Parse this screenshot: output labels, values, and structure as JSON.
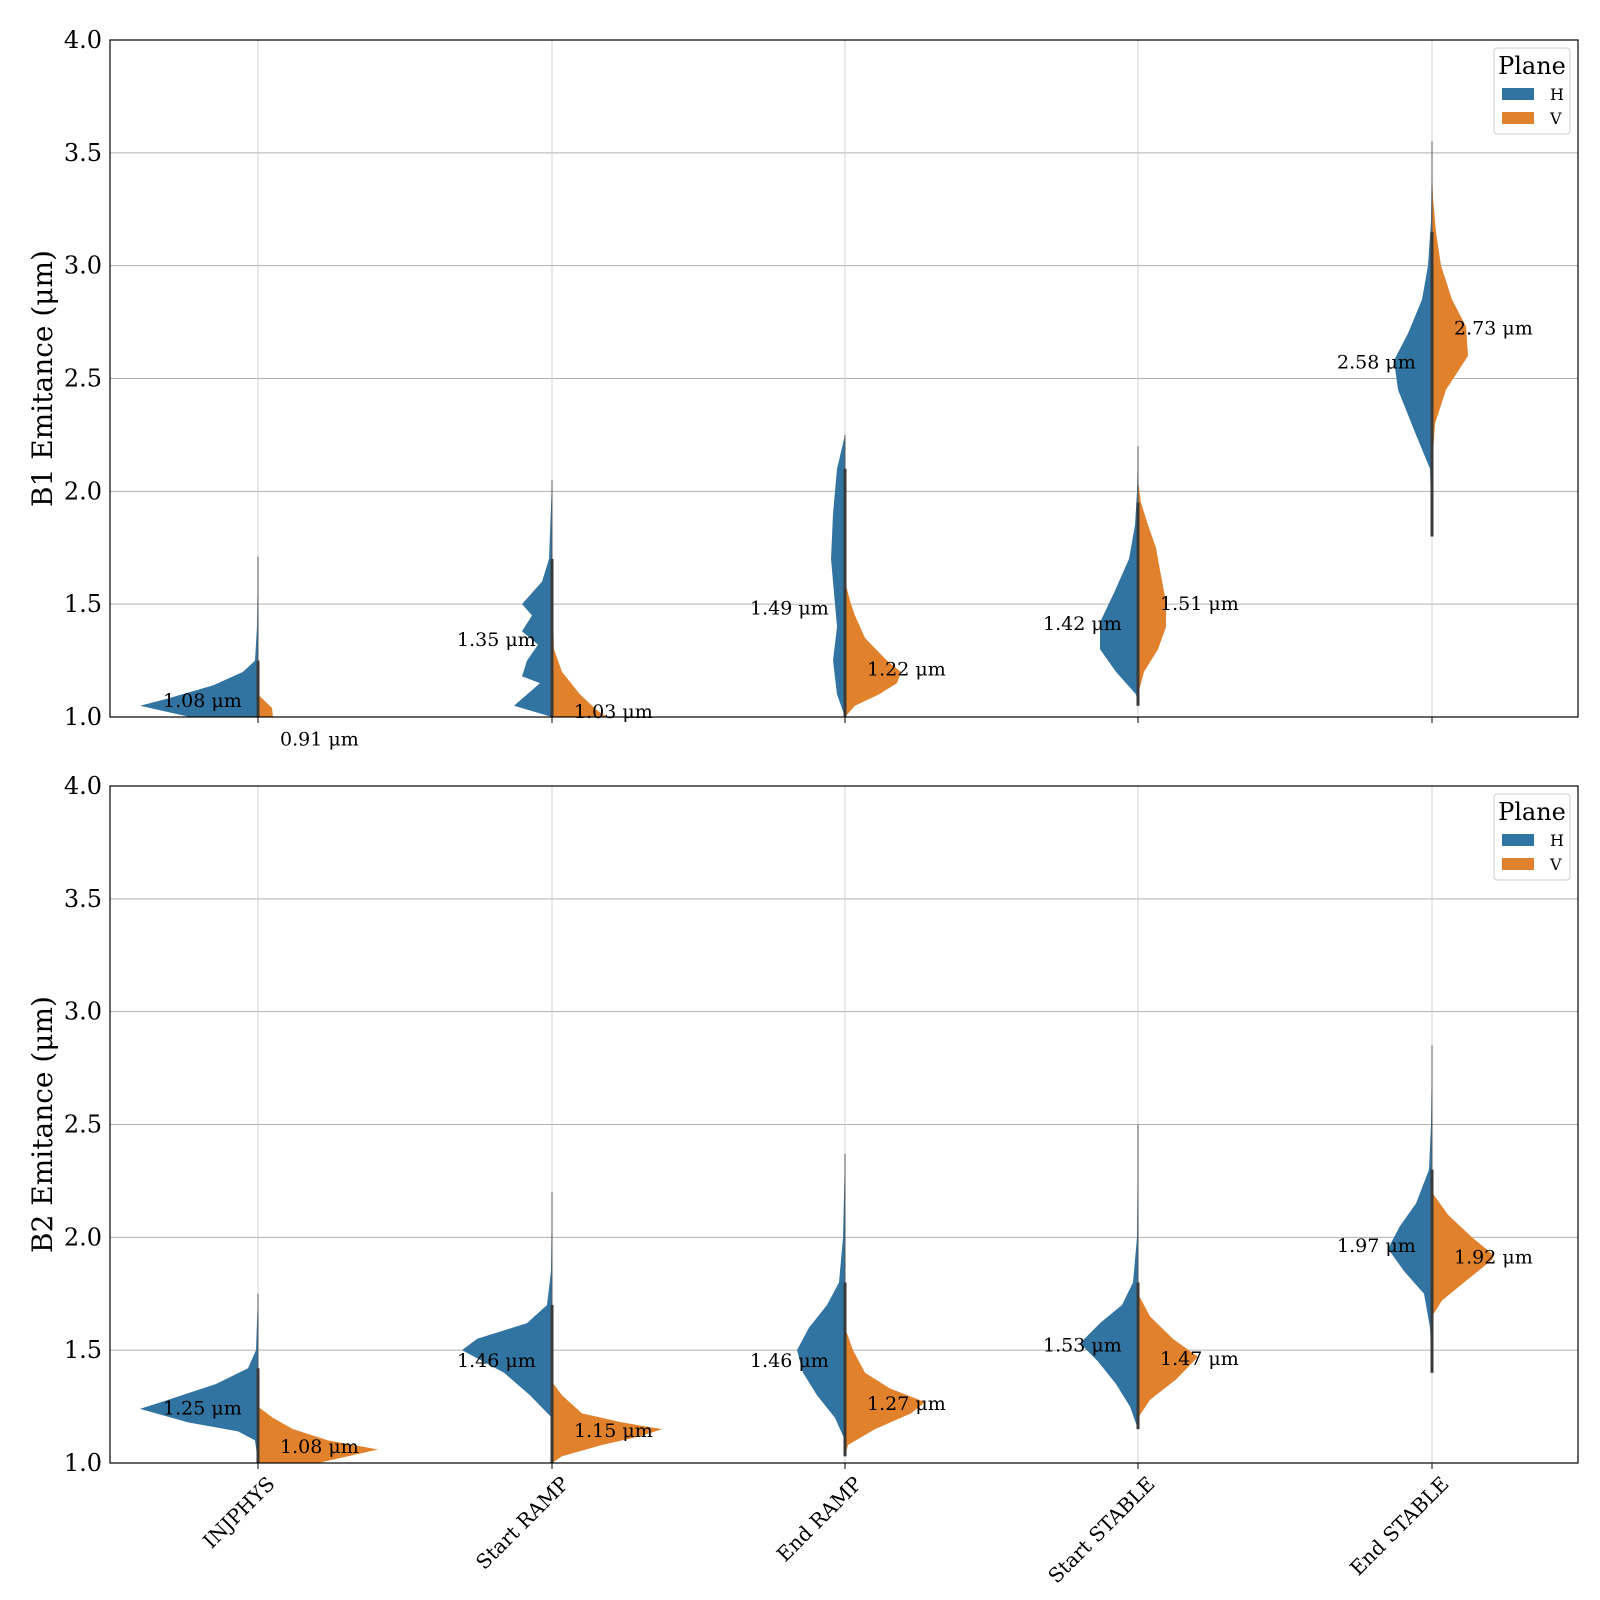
{
  "chart_data": [
    {
      "type": "violin",
      "ylabel": "B1 Emitance (μm)",
      "ylim": [
        1.0,
        4.0
      ],
      "yticks": [
        "1.0",
        "1.5",
        "2.0",
        "2.5",
        "3.0",
        "3.5",
        "4.0"
      ],
      "grid": true,
      "legend": {
        "title": "Plane",
        "entries": [
          "H",
          "V"
        ],
        "placement": "top-right"
      },
      "categories": [
        "INJPHYS",
        "Start RAMP",
        "End RAMP",
        "Start STABLE",
        "End STABLE"
      ],
      "colors": {
        "H": "#3274a1",
        "V": "#e1812c"
      },
      "series": [
        {
          "name": "H",
          "annotations": [
            "1.08 μm",
            "1.35 μm",
            "1.49 μm",
            "1.42 μm",
            "2.58 μm"
          ],
          "medians": [
            1.08,
            1.35,
            1.49,
            1.42,
            2.58
          ],
          "ranges": [
            [
              1.0,
              1.71
            ],
            [
              1.0,
              2.05
            ],
            [
              1.0,
              2.25
            ],
            [
              1.05,
              2.2
            ],
            [
              1.8,
              3.55
            ]
          ]
        },
        {
          "name": "V",
          "annotations": [
            "0.91 μm",
            "1.03 μm",
            "1.22 μm",
            "1.51 μm",
            "2.73 μm"
          ],
          "medians": [
            0.91,
            1.03,
            1.22,
            1.51,
            2.73
          ],
          "ranges": [
            [
              1.0,
              1.1
            ],
            [
              1.0,
              1.65
            ],
            [
              1.0,
              1.6
            ],
            [
              1.1,
              2.05
            ],
            [
              2.1,
              3.45
            ]
          ]
        }
      ]
    },
    {
      "type": "violin",
      "ylabel": "B2 Emitance (μm)",
      "ylim": [
        1.0,
        4.0
      ],
      "yticks": [
        "1.0",
        "1.5",
        "2.0",
        "2.5",
        "3.0",
        "3.5",
        "4.0"
      ],
      "grid": true,
      "legend": {
        "title": "Plane",
        "entries": [
          "H",
          "V"
        ],
        "placement": "top-right"
      },
      "categories": [
        "INJPHYS",
        "Start RAMP",
        "End RAMP",
        "Start STABLE",
        "End STABLE"
      ],
      "colors": {
        "H": "#3274a1",
        "V": "#e1812c"
      },
      "series": [
        {
          "name": "H",
          "annotations": [
            "1.25 μm",
            "1.46 μm",
            "1.46 μm",
            "1.53 μm",
            "1.97 μm"
          ],
          "medians": [
            1.25,
            1.46,
            1.46,
            1.53,
            1.97
          ],
          "ranges": [
            [
              1.0,
              1.75
            ],
            [
              1.2,
              2.2
            ],
            [
              1.1,
              2.37
            ],
            [
              1.15,
              2.5
            ],
            [
              1.4,
              2.85
            ]
          ]
        },
        {
          "name": "V",
          "annotations": [
            "1.08 μm",
            "1.15 μm",
            "1.27 μm",
            "1.47 μm",
            "1.92 μm"
          ],
          "medians": [
            1.08,
            1.15,
            1.27,
            1.47,
            1.92
          ],
          "ranges": [
            [
              1.0,
              1.25
            ],
            [
              1.0,
              1.36
            ],
            [
              1.03,
              1.6
            ],
            [
              1.2,
              1.75
            ],
            [
              1.65,
              2.2
            ]
          ]
        }
      ]
    }
  ]
}
